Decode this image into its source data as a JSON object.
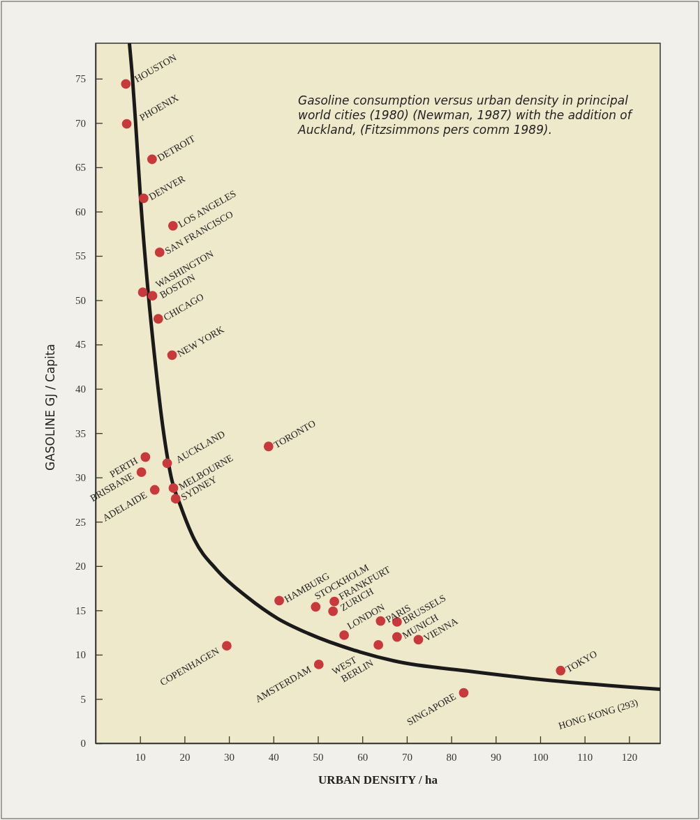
{
  "chart_data": {
    "type": "scatter",
    "xlabel": "URBAN DENSITY / ha",
    "ylabel": "GASOLINE GJ / Capita",
    "xlim": [
      0,
      127
    ],
    "ylim": [
      0,
      79
    ],
    "xticks": [
      10,
      20,
      30,
      40,
      50,
      60,
      70,
      80,
      90,
      100,
      110,
      120
    ],
    "yticks": [
      0,
      5,
      10,
      15,
      20,
      25,
      30,
      35,
      40,
      45,
      50,
      55,
      60,
      65,
      70,
      75
    ],
    "grid": false,
    "marker": "circle",
    "series": [
      {
        "type": "line",
        "color": "#1a1a1a",
        "marker": "none",
        "line_style": "solid",
        "x": [
          7.6,
          8.3,
          9.0,
          10.1,
          11.8,
          13.4,
          15.2,
          17.1,
          19.1,
          22.2,
          27.2,
          34.1,
          40.9,
          47.8,
          59.5,
          67.1,
          84.5,
          102,
          127
        ],
        "values": [
          79,
          75,
          70,
          61.5,
          51,
          43,
          35.4,
          29.8,
          26.8,
          23.0,
          19.6,
          16.5,
          14.1,
          12.4,
          10.3,
          9.3,
          8.1,
          7.1,
          6.1
        ]
      },
      {
        "color": "#c8393b",
        "x": [
          6.8,
          7.0,
          12.7,
          10.8,
          17.4,
          14.4,
          10.6,
          12.8,
          14.1,
          17.2,
          11.2,
          10.3,
          16.1,
          13.3,
          17.5,
          18.0,
          38.9,
          29.5,
          41.3,
          49.5,
          53.7,
          53.4,
          55.9,
          50.2,
          64.1,
          63.6,
          67.8,
          67.8,
          72.6,
          82.8,
          104.6
        ],
        "values": [
          74.4,
          69.9,
          65.9,
          61.5,
          58.4,
          55.4,
          50.9,
          50.5,
          47.9,
          43.8,
          32.3,
          30.6,
          31.6,
          28.6,
          28.8,
          27.6,
          33.5,
          11.0,
          16.1,
          15.4,
          16.0,
          14.9,
          12.2,
          8.9,
          13.8,
          11.1,
          13.7,
          12.0,
          11.7,
          5.7,
          8.2
        ]
      }
    ],
    "annotations": [
      "Gasoline consumption versus urban density in principal world cities (1980) (Newman, 1987) with the addition of Auckland, (Fitzsimmons pers comm 1989).",
      "HONG KONG (293)",
      {
        "text": "HOUSTON",
        "x": 6.8,
        "y": 74.4
      },
      {
        "text": "PHOENIX",
        "x": 7.0,
        "y": 69.9
      },
      {
        "text": "DETROIT",
        "x": 12.7,
        "y": 65.9
      },
      {
        "text": "DENVER",
        "x": 10.8,
        "y": 61.5
      },
      {
        "text": "LOS ANGELES",
        "x": 17.4,
        "y": 58.4
      },
      {
        "text": "SAN FRANCISCO",
        "x": 14.4,
        "y": 55.4
      },
      {
        "text": "WASHINGTON",
        "x": 10.6,
        "y": 50.9
      },
      {
        "text": "BOSTON",
        "x": 12.8,
        "y": 50.5
      },
      {
        "text": "CHICAGO",
        "x": 14.1,
        "y": 47.9
      },
      {
        "text": "NEW YORK",
        "x": 17.2,
        "y": 43.8
      },
      {
        "text": "PERTH",
        "x": 11.2,
        "y": 32.3
      },
      {
        "text": "BRISBANE",
        "x": 10.3,
        "y": 30.6
      },
      {
        "text": "AUCKLAND",
        "x": 16.1,
        "y": 31.6
      },
      {
        "text": "ADELAIDE",
        "x": 13.3,
        "y": 28.6
      },
      {
        "text": "MELBOURNE",
        "x": 17.5,
        "y": 28.8
      },
      {
        "text": "SYDNEY",
        "x": 18.0,
        "y": 27.6
      },
      {
        "text": "TORONTO",
        "x": 38.9,
        "y": 33.5
      },
      {
        "text": "COPENHAGEN",
        "x": 29.5,
        "y": 11.0
      },
      {
        "text": "HAMBURG",
        "x": 41.3,
        "y": 16.1
      },
      {
        "text": "STOCKHOLM",
        "x": 49.5,
        "y": 15.4
      },
      {
        "text": "FRANKFURT",
        "x": 53.7,
        "y": 16.0
      },
      {
        "text": "ZURICH",
        "x": 53.4,
        "y": 14.9
      },
      {
        "text": "LONDON",
        "x": 55.9,
        "y": 12.2
      },
      {
        "text": "AMSTERDAM",
        "x": 50.2,
        "y": 8.9
      },
      {
        "text": "PARIS",
        "x": 64.1,
        "y": 13.8
      },
      {
        "text": "WEST\nBERLIN",
        "x": 63.6,
        "y": 11.1
      },
      {
        "text": "BRUSSELS",
        "x": 67.8,
        "y": 13.7
      },
      {
        "text": "MUNICH",
        "x": 67.8,
        "y": 12.0
      },
      {
        "text": "VIENNA",
        "x": 72.6,
        "y": 11.7
      },
      {
        "text": "SINGAPORE",
        "x": 82.8,
        "y": 5.7
      },
      {
        "text": "TOKYO",
        "x": 104.6,
        "y": 8.2
      }
    ]
  }
}
